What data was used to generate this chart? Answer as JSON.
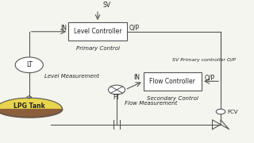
{
  "bg_color": "#f5f5f0",
  "lc_label": "Level Controller",
  "lc_sublabel": "Primary Control",
  "fc_label": "Flow Controller",
  "fc_sublabel": "Secondary Control",
  "sv_label": "SV",
  "sv_primary_label": "SV Primary controller O/P",
  "in_label": "IN",
  "op_label": "O/P",
  "ft_label": "FT",
  "lt_label": "LT",
  "fcv_label": "FCV",
  "level_meas_label": "Level Measurement",
  "flow_meas_label": "Flow Measurement",
  "lpg_label": "LPG Tank",
  "line_color": "#555555",
  "box_color": "#ffffff",
  "tank_yellow": "#e8d44d",
  "tank_brown": "#8B5E3C",
  "circle_color": "#ffffff",
  "text_color": "#222222",
  "font_size": 5.5
}
